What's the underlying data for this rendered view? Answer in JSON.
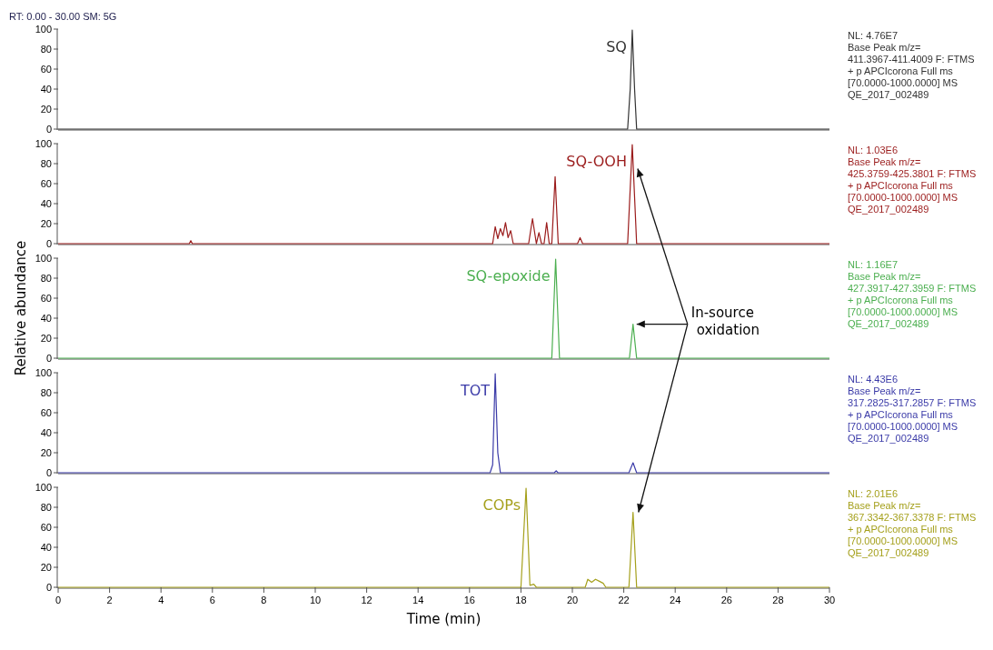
{
  "chart_data": [
    {
      "type": "line",
      "annotations": [
        "RT: 0.00 - 30.00  SM: 5G",
        "NL: 4.76E7\nBase Peak m/z=\n411.3967-411.4009 F: FTMS\n+ p APCIcorona Full ms\n[70.0000-1000.0000]  MS\nQE_2017_002489"
      ],
      "xlim": [
        0,
        30
      ],
      "ylim": [
        0,
        100
      ],
      "yticks": [
        0,
        20,
        40,
        60,
        80,
        100
      ],
      "tick_labels": "y",
      "series": [
        {
          "name": "SQ",
          "color": "#333333",
          "x": [
            0,
            22.15,
            22.25,
            22.33,
            22.42,
            22.5,
            30
          ],
          "values": [
            0,
            0,
            40,
            99,
            40,
            0,
            0
          ]
        }
      ]
    },
    {
      "type": "line",
      "annotations": [
        "NL: 1.03E6\nBase Peak m/z=\n425.3759-425.3801 F: FTMS\n+ p APCIcorona Full ms\n[70.0000-1000.0000]  MS\nQE_2017_002489"
      ],
      "xlim": [
        0,
        30
      ],
      "ylim": [
        0,
        100
      ],
      "yticks": [
        0,
        20,
        40,
        60,
        80,
        100
      ],
      "tick_labels": "y",
      "series": [
        {
          "name": "SQ-OOH",
          "color": "#9b1c1c",
          "x": [
            0,
            5.1,
            5.16,
            5.22,
            16.9,
            17.0,
            17.1,
            17.2,
            17.3,
            17.4,
            17.5,
            17.6,
            17.7,
            17.8,
            18.3,
            18.45,
            18.6,
            18.7,
            18.8,
            18.9,
            19.0,
            19.1,
            19.2,
            19.33,
            19.45,
            19.6,
            20.2,
            20.3,
            20.4,
            22.15,
            22.33,
            22.5,
            30
          ],
          "values": [
            0,
            0,
            3,
            0,
            0,
            17,
            5,
            15,
            8,
            21,
            6,
            13,
            0,
            0,
            0,
            25,
            0,
            11,
            0,
            0,
            21,
            0,
            0,
            67,
            0,
            0,
            0,
            6,
            0,
            0,
            99,
            0,
            0
          ]
        }
      ]
    },
    {
      "type": "line",
      "ylabel": "Relative abundance",
      "annotations": [
        "NL: 1.16E7\nBase Peak m/z=\n427.3917-427.3959 F: FTMS\n+ p APCIcorona Full ms\n[70.0000-1000.0000]  MS\nQE_2017_002489",
        {
          "text": "In-source oxidation",
          "x": 22.36,
          "y": 34
        }
      ],
      "xlim": [
        0,
        30
      ],
      "ylim": [
        0,
        100
      ],
      "yticks": [
        0,
        20,
        40,
        60,
        80,
        100
      ],
      "tick_labels": "y",
      "series": [
        {
          "name": "SQ-epoxide",
          "color": "#4caf50",
          "x": [
            0,
            19.2,
            19.35,
            19.5,
            22.22,
            22.36,
            22.5,
            30
          ],
          "values": [
            0,
            0,
            99,
            0,
            0,
            34,
            0,
            0
          ]
        }
      ]
    },
    {
      "type": "line",
      "annotations": [
        "NL: 4.43E6\nBase Peak m/z=\n317.2825-317.2857 F: FTMS\n+ p APCIcorona Full ms\n[70.0000-1000.0000]  MS\nQE_2017_002489"
      ],
      "xlim": [
        0,
        30
      ],
      "ylim": [
        0,
        100
      ],
      "yticks": [
        0,
        20,
        40,
        60,
        80,
        100
      ],
      "tick_labels": "y",
      "series": [
        {
          "name": "TOT",
          "color": "#3b3ba8",
          "x": [
            0,
            16.8,
            16.9,
            17.0,
            17.1,
            17.2,
            19.3,
            19.37,
            19.44,
            22.2,
            22.36,
            22.5,
            30
          ],
          "values": [
            0,
            0,
            8,
            99,
            20,
            0,
            0,
            2,
            0,
            0,
            10,
            0,
            0
          ]
        }
      ]
    },
    {
      "type": "line",
      "xlabel": "Time (min)",
      "annotations": [
        "NL: 2.01E6\nBase Peak m/z=\n367.3342-367.3378 F: FTMS\n+ p APCIcorona Full ms\n[70.0000-1000.0000]  MS\nQE_2017_002489"
      ],
      "xlim": [
        0,
        30
      ],
      "ylim": [
        0,
        100
      ],
      "yticks": [
        0,
        20,
        40,
        60,
        80,
        100
      ],
      "xticks": [
        0,
        2,
        4,
        6,
        8,
        10,
        12,
        14,
        16,
        18,
        20,
        22,
        24,
        26,
        28,
        30
      ],
      "series": [
        {
          "name": "COPs",
          "color": "#a5a01c",
          "x": [
            0,
            18.0,
            18.2,
            18.35,
            18.5,
            18.6,
            20.5,
            20.6,
            20.75,
            20.9,
            21.05,
            21.2,
            21.3,
            22.2,
            22.36,
            22.5,
            30
          ],
          "values": [
            0,
            0,
            99,
            2,
            3,
            0,
            0,
            8,
            5,
            8,
            6,
            4,
            0,
            0,
            75,
            0,
            0
          ]
        }
      ]
    }
  ]
}
